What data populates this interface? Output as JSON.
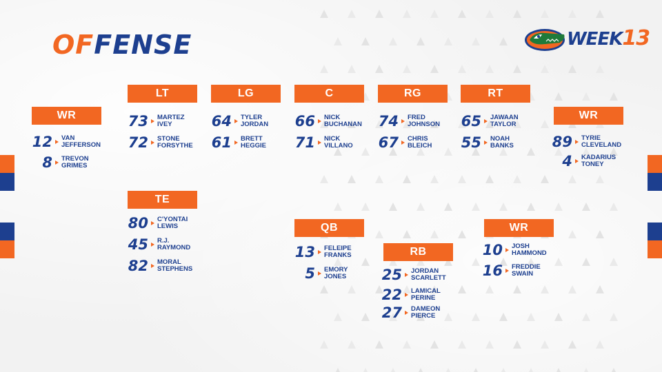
{
  "header": {
    "title_accent": "OF",
    "title_rest": "FENSE",
    "week_label": "WEEK",
    "week_number": "13"
  },
  "colors": {
    "orange": "#f26722",
    "blue": "#1d3f8f",
    "green": "#1f7a3a",
    "background": "#f2f2f2"
  },
  "logo_icon": "gator-head-icon",
  "groups": {
    "wr_left": {
      "label": "WR",
      "players": [
        {
          "number": "12",
          "first": "VAN",
          "last": "JEFFERSON"
        },
        {
          "number": "8",
          "first": "TREVON",
          "last": "GRIMES"
        }
      ]
    },
    "lt": {
      "label": "LT",
      "players": [
        {
          "number": "73",
          "first": "MARTEZ",
          "last": "IVEY"
        },
        {
          "number": "72",
          "first": "STONE",
          "last": "FORSYTHE"
        }
      ]
    },
    "lg": {
      "label": "LG",
      "players": [
        {
          "number": "64",
          "first": "TYLER",
          "last": "JORDAN"
        },
        {
          "number": "61",
          "first": "BRETT",
          "last": "HEGGIE"
        }
      ]
    },
    "c": {
      "label": "C",
      "players": [
        {
          "number": "66",
          "first": "NICK",
          "last": "BUCHANAN"
        },
        {
          "number": "71",
          "first": "NICK",
          "last": "VILLANO"
        }
      ]
    },
    "rg": {
      "label": "RG",
      "players": [
        {
          "number": "74",
          "first": "FRED",
          "last": "JOHNSON"
        },
        {
          "number": "67",
          "first": "CHRIS",
          "last": "BLEICH"
        }
      ]
    },
    "rt": {
      "label": "RT",
      "players": [
        {
          "number": "65",
          "first": "JAWAAN",
          "last": "TAYLOR"
        },
        {
          "number": "55",
          "first": "NOAH",
          "last": "BANKS"
        }
      ]
    },
    "wr_right": {
      "label": "WR",
      "players": [
        {
          "number": "89",
          "first": "TYRIE",
          "last": "CLEVELAND"
        },
        {
          "number": "4",
          "first": "KADARIUS",
          "last": "TONEY"
        }
      ]
    },
    "te": {
      "label": "TE",
      "players": [
        {
          "number": "80",
          "first": "C'YONTAI",
          "last": "LEWIS"
        },
        {
          "number": "45",
          "first": "R.J.",
          "last": "RAYMOND"
        },
        {
          "number": "82",
          "first": "MORAL",
          "last": "STEPHENS"
        }
      ]
    },
    "qb": {
      "label": "QB",
      "players": [
        {
          "number": "13",
          "first": "FELEIPE",
          "last": "FRANKS"
        },
        {
          "number": "5",
          "first": "EMORY",
          "last": "JONES"
        }
      ]
    },
    "rb": {
      "label": "RB",
      "players": [
        {
          "number": "25",
          "first": "JORDAN",
          "last": "SCARLETT"
        },
        {
          "number": "22",
          "first": "LAMICAL",
          "last": "PERINE"
        },
        {
          "number": "27",
          "first": "DAMEON",
          "last": "PIERCE"
        }
      ]
    },
    "wr_slot": {
      "label": "WR",
      "players": [
        {
          "number": "10",
          "first": "JOSH",
          "last": "HAMMOND"
        },
        {
          "number": "16",
          "first": "FREDDIE",
          "last": "SWAIN"
        }
      ]
    }
  }
}
